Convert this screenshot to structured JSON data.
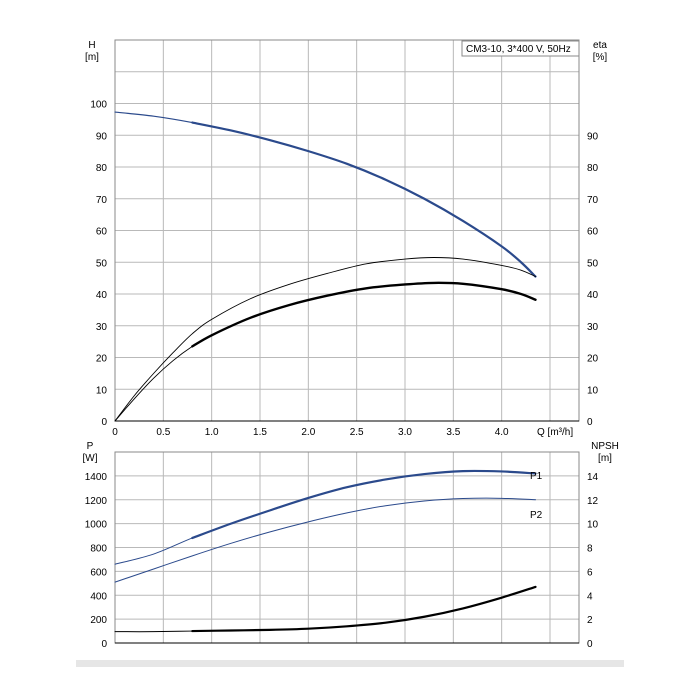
{
  "chart_data": [
    {
      "type": "line",
      "panel": "upper",
      "title": "CM3-10, 3*400 V, 50Hz",
      "ylabel_left": [
        "H",
        "[m]"
      ],
      "ylabel_right": [
        "eta",
        "[%]"
      ],
      "xlabel": "Q [m³/h]",
      "x_ticks": [
        "0",
        "0.5",
        "1.0",
        "1.5",
        "2.0",
        "2.5",
        "3.0",
        "3.5",
        "4.0"
      ],
      "y_left_ticks": [
        "0",
        "10",
        "20",
        "30",
        "40",
        "50",
        "60",
        "70",
        "80",
        "90",
        "100"
      ],
      "y_right_ticks": [
        "0",
        "10",
        "20",
        "30",
        "40",
        "50",
        "60",
        "70",
        "80",
        "90"
      ],
      "xlim": [
        0,
        4.8
      ],
      "ylim": [
        0,
        120
      ],
      "grid": true,
      "series": [
        {
          "color": "#2b4a8c",
          "values": [
            [
              0,
              97.3
            ],
            [
              0.4,
              96
            ],
            [
              0.8,
              94
            ],
            [
              1.2,
              91.5
            ],
            [
              1.6,
              88.5
            ],
            [
              2.0,
              85
            ],
            [
              2.4,
              81
            ],
            [
              2.8,
              76
            ],
            [
              3.2,
              70
            ],
            [
              3.6,
              63
            ],
            [
              4.0,
              55
            ],
            [
              4.2,
              50
            ],
            [
              4.35,
              45.5
            ]
          ]
        },
        {
          "color": "#000000",
          "values": [
            [
              0,
              0
            ],
            [
              0.2,
              8
            ],
            [
              0.4,
              15
            ],
            [
              0.6,
              21.5
            ],
            [
              0.8,
              27.5
            ],
            [
              1.0,
              32
            ],
            [
              1.4,
              38.5
            ],
            [
              1.8,
              43
            ],
            [
              2.2,
              46.5
            ],
            [
              2.6,
              49.5
            ],
            [
              3.0,
              51
            ],
            [
              3.3,
              51.5
            ],
            [
              3.6,
              51
            ],
            [
              4.0,
              49
            ],
            [
              4.2,
              47.5
            ],
            [
              4.35,
              45.5
            ]
          ]
        },
        {
          "color": "#000000",
          "values": [
            [
              0,
              0
            ],
            [
              0.2,
              7
            ],
            [
              0.4,
              13.5
            ],
            [
              0.6,
              19
            ],
            [
              0.8,
              23.5
            ],
            [
              1.0,
              27
            ],
            [
              1.4,
              32.5
            ],
            [
              1.8,
              36.5
            ],
            [
              2.2,
              39.5
            ],
            [
              2.6,
              41.8
            ],
            [
              3.0,
              43
            ],
            [
              3.3,
              43.5
            ],
            [
              3.6,
              43.2
            ],
            [
              4.0,
              41.5
            ],
            [
              4.2,
              40
            ],
            [
              4.35,
              38.2
            ]
          ]
        }
      ]
    },
    {
      "type": "line",
      "panel": "lower",
      "ylabel_left": [
        "P",
        "[W]"
      ],
      "ylabel_right": [
        "NPSH",
        "[m]"
      ],
      "y_left_ticks": [
        "0",
        "200",
        "400",
        "600",
        "800",
        "1000",
        "1200",
        "1400"
      ],
      "y_right_ticks": [
        "0",
        "2",
        "4",
        "6",
        "8",
        "10",
        "12",
        "14"
      ],
      "xlim": [
        0,
        4.8
      ],
      "ylim": [
        0,
        1600
      ],
      "grid": true,
      "series": [
        {
          "name": "P1",
          "color": "#2b4a8c",
          "values": [
            [
              0,
              660
            ],
            [
              0.4,
              745
            ],
            [
              0.8,
              880
            ],
            [
              1.2,
              1000
            ],
            [
              1.6,
              1110
            ],
            [
              2.0,
              1215
            ],
            [
              2.4,
              1305
            ],
            [
              2.8,
              1370
            ],
            [
              3.2,
              1415
            ],
            [
              3.6,
              1440
            ],
            [
              4.0,
              1437
            ],
            [
              4.35,
              1420
            ]
          ]
        },
        {
          "name": "P2",
          "color": "#2b4a8c",
          "values": [
            [
              0,
              510
            ],
            [
              0.4,
              620
            ],
            [
              0.8,
              730
            ],
            [
              1.2,
              835
            ],
            [
              1.6,
              930
            ],
            [
              2.0,
              1015
            ],
            [
              2.4,
              1090
            ],
            [
              2.8,
              1150
            ],
            [
              3.2,
              1190
            ],
            [
              3.6,
              1210
            ],
            [
              4.0,
              1212
            ],
            [
              4.35,
              1200
            ]
          ]
        },
        {
          "color": "#000000",
          "values": [
            [
              0,
              0.95
            ],
            [
              0.4,
              0.95
            ],
            [
              0.8,
              1.0
            ],
            [
              1.2,
              1.05
            ],
            [
              1.6,
              1.1
            ],
            [
              2.0,
              1.2
            ],
            [
              2.4,
              1.4
            ],
            [
              2.8,
              1.7
            ],
            [
              3.2,
              2.2
            ],
            [
              3.6,
              2.9
            ],
            [
              4.0,
              3.8
            ],
            [
              4.35,
              4.7
            ]
          ]
        }
      ]
    }
  ]
}
